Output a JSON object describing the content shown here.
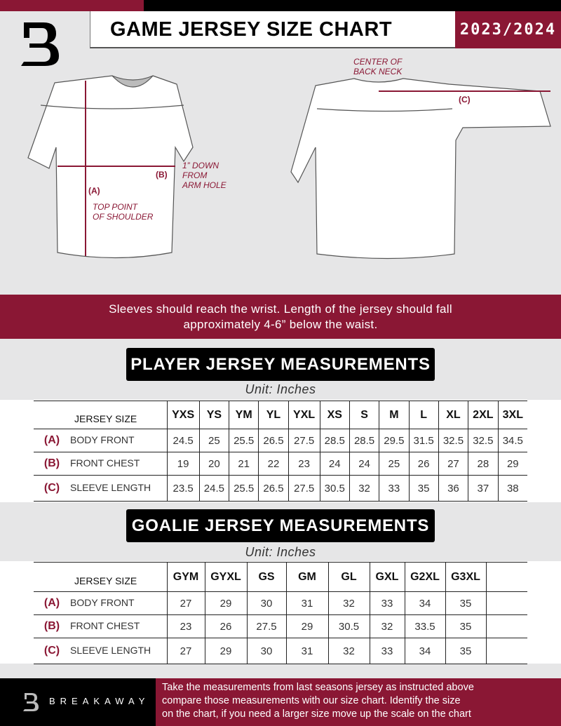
{
  "header": {
    "title": "GAME JERSEY SIZE CHART",
    "season": "2023/2024",
    "logo_letter": "B"
  },
  "diagram": {
    "center_back_neck": [
      "CENTER OF",
      "BACK NECK"
    ],
    "label_a": "(A)",
    "label_b": "(B)",
    "label_c": "(C)",
    "arm_hole_note": [
      "1” DOWN",
      "FROM",
      "ARM HOLE"
    ],
    "shoulder_note": [
      "TOP POINT",
      "OF SHOULDER"
    ]
  },
  "instruction_band": [
    "Sleeves should reach the wrist. Length of the jersey should fall",
    "approximately 4-6” below the waist."
  ],
  "player": {
    "title": "PLAYER JERSEY MEASUREMENTS",
    "unit": "Unit: Inches",
    "header_label": "JERSEY SIZE",
    "sizes": [
      "YXS",
      "YS",
      "YM",
      "YL",
      "YXL",
      "XS",
      "S",
      "M",
      "L",
      "XL",
      "2XL",
      "3XL"
    ],
    "rows": [
      {
        "key": "(A)",
        "label": "BODY FRONT",
        "values": [
          "24.5",
          "25",
          "25.5",
          "26.5",
          "27.5",
          "28.5",
          "28.5",
          "29.5",
          "31.5",
          "32.5",
          "32.5",
          "34.5"
        ]
      },
      {
        "key": "(B)",
        "label": "FRONT CHEST",
        "values": [
          "19",
          "20",
          "21",
          "22",
          "23",
          "24",
          "24",
          "25",
          "26",
          "27",
          "28",
          "29"
        ]
      },
      {
        "key": "(C)",
        "label": "SLEEVE LENGTH",
        "values": [
          "23.5",
          "24.5",
          "25.5",
          "26.5",
          "27.5",
          "30.5",
          "32",
          "33",
          "35",
          "36",
          "37",
          "38"
        ]
      }
    ]
  },
  "goalie": {
    "title": "GOALIE JERSEY MEASUREMENTS",
    "unit": "Unit: Inches",
    "header_label": "JERSEY SIZE",
    "sizes": [
      "GYM",
      "GYXL",
      "GS",
      "GM",
      "GL",
      "GXL",
      "G2XL",
      "G3XL",
      ""
    ],
    "rows": [
      {
        "key": "(A)",
        "label": "BODY FRONT",
        "values": [
          "27",
          "29",
          "30",
          "31",
          "32",
          "33",
          "34",
          "35",
          ""
        ]
      },
      {
        "key": "(B)",
        "label": "FRONT CHEST",
        "values": [
          "23",
          "26",
          "27.5",
          "29",
          "30.5",
          "32",
          "33.5",
          "35",
          ""
        ]
      },
      {
        "key": "(C)",
        "label": "SLEEVE LENGTH",
        "values": [
          "27",
          "29",
          "30",
          "31",
          "32",
          "33",
          "34",
          "35",
          ""
        ]
      }
    ]
  },
  "footer": {
    "brand": "BREAKAWAY",
    "text": [
      "Take the measurements from last seasons jersey as instructed above",
      "compare those measurements  with our size chart. Identify the size",
      "on the chart, if you need a larger size move up the scale on the chart"
    ]
  },
  "colors": {
    "accent": "#8a1734",
    "dark": "#000000",
    "background": "#e6e6e7"
  }
}
